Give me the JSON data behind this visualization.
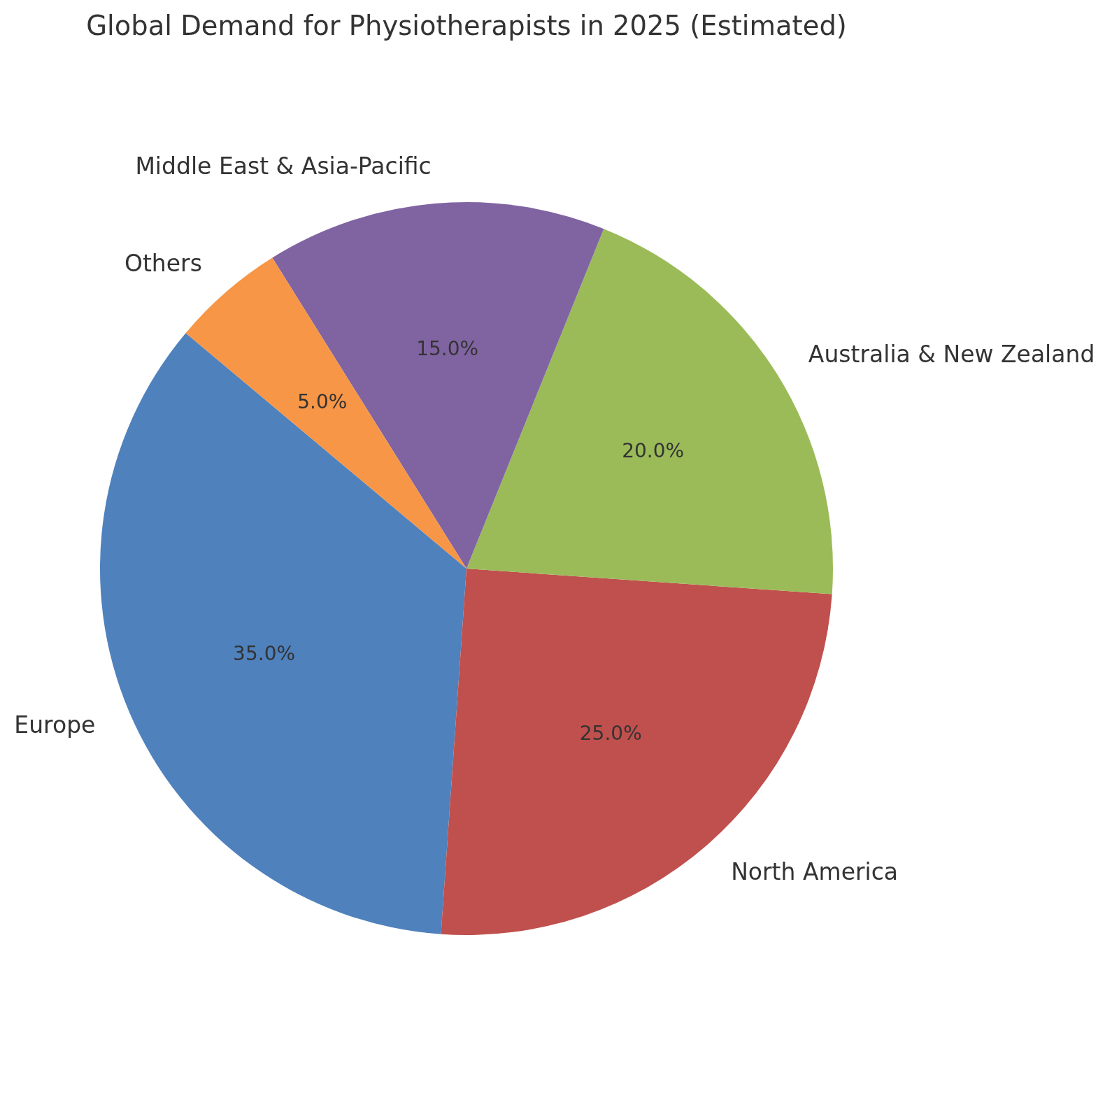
{
  "chart_data": {
    "type": "pie",
    "title": "Global Demand for Physiotherapists in 2025 (Estimated)",
    "categories": [
      "Europe",
      "North America",
      "Australia & New Zealand",
      "Middle East & Asia-Pacific",
      "Others"
    ],
    "values": [
      35,
      25,
      20,
      15,
      5
    ],
    "colors": [
      "#4f81bd",
      "#c0504d",
      "#9bbb59",
      "#8064a2",
      "#f79646"
    ],
    "value_labels": [
      "35.0%",
      "25.0%",
      "20.0%",
      "15.0%",
      "5.0%"
    ]
  }
}
